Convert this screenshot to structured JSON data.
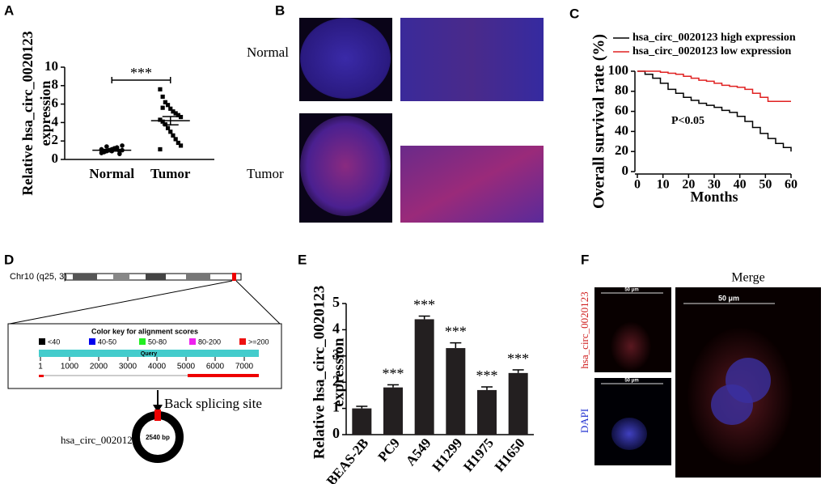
{
  "panel_letters": [
    "A",
    "B",
    "C",
    "D",
    "E",
    "F"
  ],
  "chart_data": [
    {
      "type": "strip",
      "ylabel": [
        "Relative hsa_circ_0020123",
        "expression"
      ],
      "categories": [
        "Normal",
        "Tumor"
      ],
      "values": [
        [
          0.7,
          0.8,
          0.9,
          1.0,
          1.1,
          1.2,
          1.3,
          0.9,
          1.0,
          1.1,
          0.8,
          1.4,
          1.0,
          0.9,
          1.2,
          1.1,
          0.6,
          1.5,
          1.0,
          0.9
        ],
        [
          7.6,
          6.8,
          6.2,
          5.9,
          5.5,
          5.2,
          5.0,
          4.8,
          4.6,
          4.3,
          4.1,
          3.8,
          3.4,
          3.0,
          2.6,
          2.2,
          1.8,
          1.5,
          1.1,
          5.6
        ]
      ],
      "means": [
        1.0,
        4.2
      ],
      "errors": [
        0.1,
        0.45
      ],
      "annotation": "***",
      "ylim": [
        0,
        10
      ],
      "yticks": [
        0,
        2,
        4,
        6,
        8,
        10
      ],
      "color": "#000000"
    },
    {
      "type": "line",
      "step": true,
      "xlabel": "Months",
      "ylabel": "Overall survival rate (%)",
      "annotation": "P<0.05",
      "x": [
        0,
        3,
        6,
        9,
        12,
        15,
        18,
        21,
        24,
        27,
        30,
        33,
        36,
        39,
        42,
        45,
        48,
        51,
        54,
        57,
        60
      ],
      "series": [
        {
          "name": "hsa_circ_0020123 high expression",
          "color": "#000000",
          "values": [
            100,
            97,
            93,
            88,
            82,
            78,
            74,
            71,
            68,
            66,
            64,
            61,
            59,
            55,
            50,
            44,
            38,
            33,
            28,
            24,
            20
          ]
        },
        {
          "name": "hsa_circ_0020123 low expression",
          "color": "#e02020",
          "values": [
            100,
            100,
            100,
            99,
            98,
            97,
            95,
            93,
            91,
            90,
            88,
            86,
            85,
            84,
            82,
            78,
            74,
            70,
            70,
            70,
            70
          ]
        }
      ],
      "xlim": [
        0,
        60
      ],
      "xticks": [
        0,
        10,
        20,
        30,
        40,
        50,
        60
      ],
      "ylim": [
        0,
        100
      ],
      "yticks": [
        0,
        20,
        40,
        60,
        80,
        100
      ],
      "legend": "top-right"
    },
    {
      "type": "bar",
      "ylabel": [
        "Relative hsa_circ_0020123",
        "expression"
      ],
      "categories": [
        "BEAS-2B",
        "PC9",
        "A549",
        "H1299",
        "H1975",
        "H1650"
      ],
      "values": [
        1.0,
        1.8,
        4.4,
        3.3,
        1.7,
        2.35
      ],
      "errors": [
        0.08,
        0.1,
        0.12,
        0.2,
        0.12,
        0.12
      ],
      "significance": [
        null,
        "***",
        "***",
        "***",
        "***",
        "***"
      ],
      "color": "#231f20",
      "ylim": [
        0,
        5
      ],
      "yticks": [
        0,
        1,
        2,
        3,
        4,
        5
      ]
    }
  ],
  "panel_b": {
    "rows": [
      "Normal",
      "Tumor"
    ]
  },
  "panel_d": {
    "chromosome": "Chr10 (q25, 3)",
    "key_title": "Color key for alignment scores",
    "key": [
      {
        "label": "<40",
        "color": "#000000"
      },
      {
        "label": "40-50",
        "color": "#0000ee"
      },
      {
        "label": "50-80",
        "color": "#22ee22"
      },
      {
        "label": "80-200",
        "color": "#ee22ee"
      },
      {
        "label": ">=200",
        "color": "#ee1111"
      }
    ],
    "query": "Query",
    "ruler": [
      1,
      1000,
      2000,
      3000,
      4000,
      5000,
      6000,
      7000
    ],
    "site": "Back splicing site",
    "circ_name": "hsa_circ_0020123",
    "circ_size": "2540 bp"
  },
  "panel_f": {
    "merge": "Merge",
    "red_label": "hsa_circ_0020123",
    "blue_label": "DAPI",
    "scale": [
      "50 μm",
      "50 μm",
      "50 μm"
    ]
  }
}
